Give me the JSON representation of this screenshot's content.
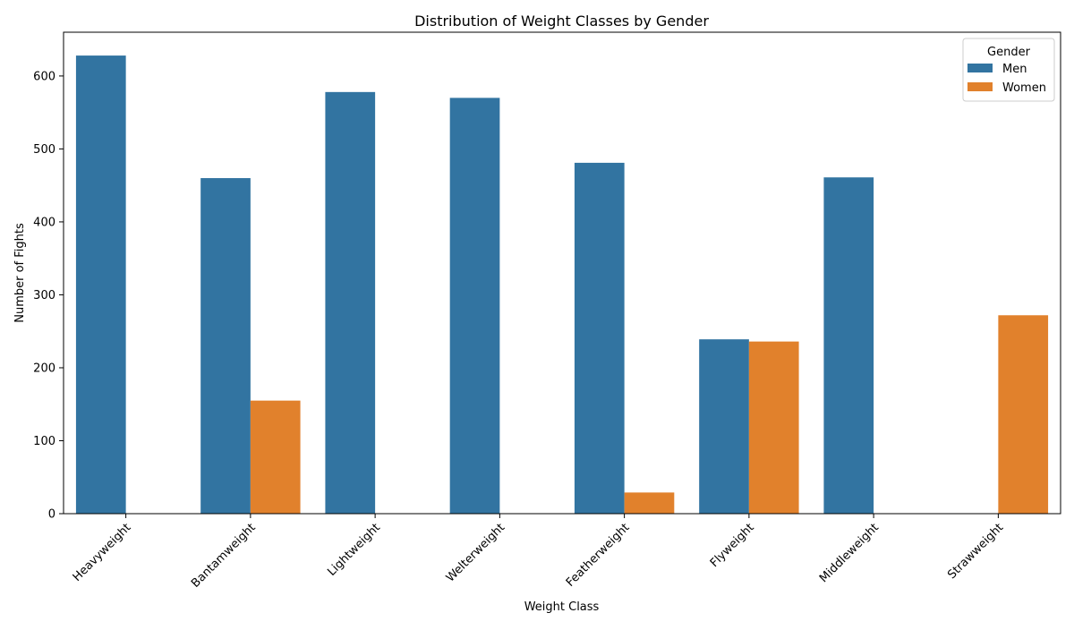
{
  "chart_data": {
    "type": "bar",
    "title": "Distribution of Weight Classes by Gender",
    "xlabel": "Weight Class",
    "ylabel": "Number of Fights",
    "categories": [
      "Heavyweight",
      "Bantamweight",
      "Lightweight",
      "Welterweight",
      "Featherweight",
      "Flyweight",
      "Middleweight",
      "Strawweight"
    ],
    "series": [
      {
        "name": "Men",
        "color": "#3274a1",
        "values": [
          628,
          460,
          578,
          570,
          481,
          239,
          461,
          0
        ]
      },
      {
        "name": "Women",
        "color": "#e1812c",
        "values": [
          0,
          155,
          0,
          0,
          29,
          236,
          0,
          272
        ]
      }
    ],
    "ylim": [
      0,
      660
    ],
    "yticks": [
      0,
      100,
      200,
      300,
      400,
      500,
      600
    ],
    "ytick_labels": [
      "0",
      "100",
      "200",
      "300",
      "400",
      "500",
      "600"
    ],
    "grid": false,
    "legend": {
      "title": "Gender",
      "placement": "top-right"
    }
  }
}
